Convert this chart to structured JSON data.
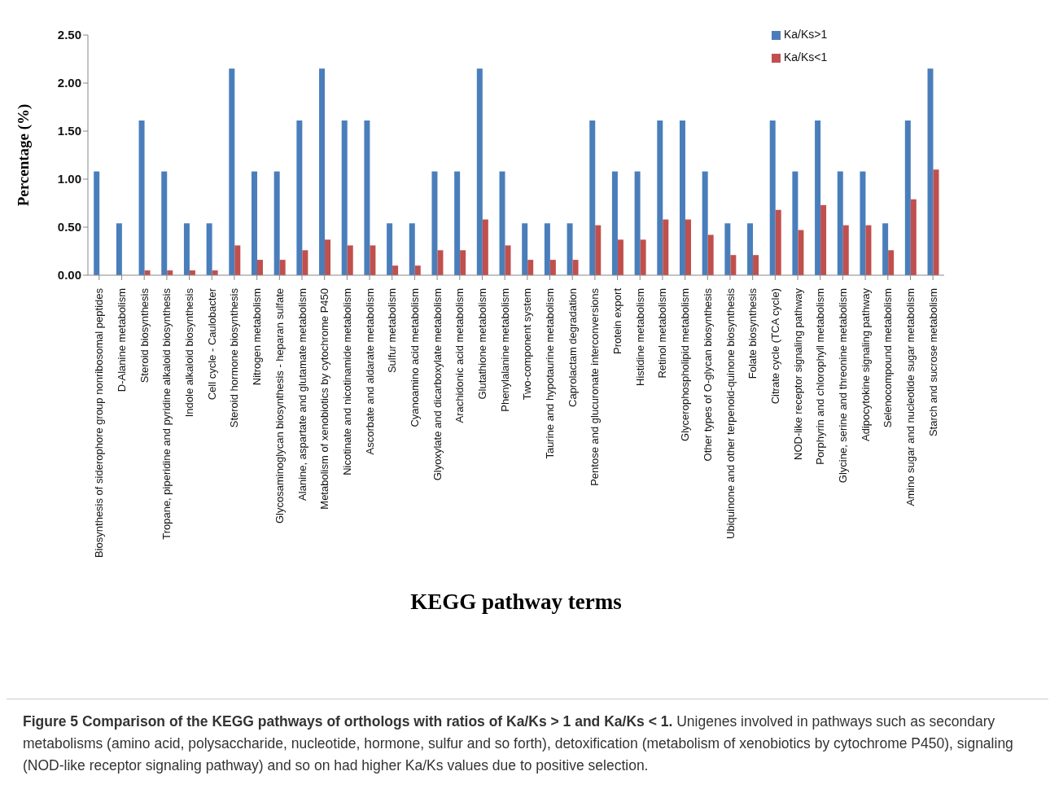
{
  "chart_data": {
    "type": "bar",
    "xlabel": "KEGG  pathway terms",
    "ylabel": "Percentage (%)",
    "categories": [
      "Biosynthesis of siderophore group nonribosomal peptides",
      "D-Alanine metabolism",
      "Steroid biosynthesis",
      "Tropane, piperidine and pyridine alkaloid biosynthesis",
      "Indole alkaloid biosynthesis",
      "Cell cycle - Caulobacter",
      "Steroid hormone biosynthesis",
      "Nitrogen metabolism",
      "Glycosaminoglycan biosynthesis - heparan sulfate",
      "Alanine, aspartate  and glutamate  metabolism",
      "Metabolism of xenobiotics by cytochrome P450",
      "Nicotinate and nicotinamide metabolism",
      "Ascorbate and aldarate metabolism",
      "Sulfur metabolism",
      "Cyanoamino acid metabolism",
      "Glyoxylate and dicarboxylate metabolism",
      "Arachidonic acid metabolism",
      "Glutathione metabolism",
      "Phenylalanine metabolism",
      "Two-component system",
      "Taurine and hypotaurine metabolism",
      "Caprolactam degradation",
      "Pentose and glucuronate interconversions",
      "Protein export",
      "Histidine metabolism",
      "Retinol metabolism",
      "Glycerophospholipid metabolism",
      "Other types of O-glycan biosynthesis",
      "Ubiquinone and other terpenoid-quinone biosynthesis",
      "Folate biosynthesis",
      "Citrate cycle (TCA cycle)",
      "NOD-like receptor signaling pathway",
      "Porphyrin and chlorophyll metabolism",
      "Glycine, serine and threonine metabolism",
      "Adipocytokine signaling pathway",
      "Selenocompound metabolism",
      "Amino sugar and nucleotide sugar metabolism",
      "Starch and sucrose metabolism"
    ],
    "series": [
      {
        "name": "Ka/Ks>1",
        "color": "#4a7ebb",
        "values": [
          1.08,
          0.54,
          1.61,
          1.08,
          0.54,
          0.54,
          2.15,
          1.08,
          1.08,
          1.61,
          2.15,
          1.61,
          1.61,
          0.54,
          0.54,
          1.08,
          1.08,
          2.15,
          1.08,
          0.54,
          0.54,
          0.54,
          1.61,
          1.08,
          1.08,
          1.61,
          1.61,
          1.08,
          0.54,
          0.54,
          1.61,
          1.08,
          1.61,
          1.08,
          1.08,
          0.54,
          1.61,
          2.15
        ]
      },
      {
        "name": "Ka/Ks<1",
        "color": "#c0504d",
        "values": [
          0,
          0,
          0.05,
          0.05,
          0.05,
          0.05,
          0.31,
          0.16,
          0.16,
          0.26,
          0.37,
          0.31,
          0.31,
          0.1,
          0.1,
          0.26,
          0.26,
          0.58,
          0.31,
          0.16,
          0.16,
          0.16,
          0.52,
          0.37,
          0.37,
          0.58,
          0.58,
          0.42,
          0.21,
          0.21,
          0.68,
          0.47,
          0.73,
          0.52,
          0.52,
          0.26,
          0.79,
          1.1
        ]
      }
    ],
    "ylim": [
      0,
      2.5
    ],
    "yticks": [
      {
        "value": 0,
        "label": "0.00"
      },
      {
        "value": 0.5,
        "label": "0.50"
      },
      {
        "value": 1,
        "label": "1.00"
      },
      {
        "value": 1.5,
        "label": "1.50"
      },
      {
        "value": 2,
        "label": "2.00"
      },
      {
        "value": 2.5,
        "label": "2.50"
      }
    ],
    "grid": false,
    "legend": "top right",
    "annotations": [
      "Figure 5 Comparison of the KEGG pathways of orthologs with ratios of Ka/Ks > 1 and Ka/Ks < 1.",
      "Unigenes involved in pathways such as secondary metabolisms (amino acid, polysaccharide, nucleotide, hormone, sulfur and so forth), detoxification (metabolism of xenobiotics by cytochrome P450), signaling (NOD-like receptor signaling pathway) and so on had higher Ka/Ks values due to positive selection."
    ]
  }
}
